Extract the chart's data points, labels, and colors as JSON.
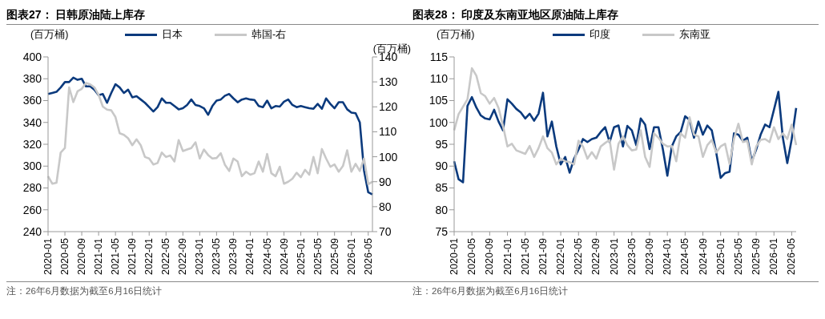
{
  "chart_data": [
    {
      "type": "line",
      "title": "图表27：  日韩原油陆上库存",
      "ylabel": "(百万桶)",
      "y2label": "(百万桶)",
      "annotations": [
        "注：26年6月数据为截至6月16日统计"
      ],
      "categories": [
        "2020-01",
        null,
        null,
        null,
        "2020-05",
        null,
        null,
        null,
        "2020-09",
        null,
        null,
        null,
        "2021-01",
        null,
        null,
        null,
        "2021-05",
        null,
        null,
        null,
        "2021-09",
        null,
        null,
        null,
        "2022-01",
        null,
        null,
        null,
        "2022-05",
        null,
        null,
        null,
        "2022-09",
        null,
        null,
        null,
        "2023-01",
        null,
        null,
        null,
        "2023-05",
        null,
        null,
        null,
        "2023-09",
        null,
        null,
        null,
        "2024-01",
        null,
        null,
        null,
        "2024-05",
        null,
        null,
        null,
        "2024-09",
        null,
        null,
        null,
        "2025-01",
        null,
        null,
        null,
        "2025-05",
        null,
        null,
        null,
        "2025-09",
        null,
        null,
        null,
        "2026-01",
        null,
        null,
        null,
        "2026-05",
        null
      ],
      "series": [
        {
          "name": "日本",
          "color": "#0b3a7d",
          "values": [
            366,
            367,
            368,
            372,
            377,
            377,
            381,
            379,
            380,
            373,
            373,
            370,
            365,
            366,
            358,
            367,
            375,
            372,
            367,
            370,
            363,
            364,
            361,
            358,
            354,
            350,
            354,
            362,
            358,
            358,
            355,
            352,
            353,
            356,
            361,
            356,
            355,
            353,
            347,
            355,
            360,
            361,
            364.5,
            366,
            362,
            358.5,
            361,
            362,
            361,
            360.5,
            355,
            354,
            360,
            353,
            355,
            354.5,
            359,
            361,
            356,
            354,
            355,
            354,
            353,
            352.5,
            357,
            352.5,
            362,
            357,
            353,
            358.5,
            358.5,
            352,
            349,
            348.5,
            340,
            296,
            276,
            274
          ]
        },
        {
          "name": "韩国-右",
          "color": "#c8c8c8",
          "axis": "y2",
          "values": [
            92.2,
            89.2,
            89.6,
            101.7,
            103.5,
            127.8,
            121.9,
            126.2,
            127.2,
            129.6,
            129,
            127.8,
            124.8,
            120.1,
            118.9,
            118.6,
            115.9,
            109.4,
            108.8,
            107.4,
            104.6,
            107,
            104.6,
            99.9,
            99.3,
            96.9,
            97.5,
            101.7,
            99.9,
            100.5,
            98.1,
            106.7,
            102.3,
            102.9,
            103.5,
            105.8,
            99.3,
            102.9,
            100.7,
            99.3,
            99.5,
            101.4,
            96.7,
            94.3,
            99.3,
            98.1,
            92.2,
            94,
            92.8,
            93.4,
            98.1,
            94,
            101.1,
            93.4,
            92.2,
            96,
            89.2,
            90,
            91.2,
            93.6,
            91.8,
            94.8,
            92.8,
            99.9,
            93.4,
            103.1,
            99.3,
            96,
            96.9,
            94,
            96.3,
            102.6,
            94,
            97.2,
            94.3,
            99.3,
            89,
            90
          ]
        }
      ],
      "ylim": [
        240,
        400
      ],
      "yticks": [
        240,
        260,
        280,
        300,
        320,
        340,
        360,
        380,
        400
      ],
      "y2lim": [
        70,
        140
      ],
      "y2ticks": [
        70,
        80,
        90,
        100,
        110,
        120,
        130,
        140
      ],
      "legend": "top",
      "grid": false,
      "marker": "none",
      "line_style": "solid"
    },
    {
      "type": "line",
      "title": "图表28：  印度及东南亚地区原油陆上库存",
      "ylabel": "(百万桶)",
      "annotations": [
        "注：26年6月数据为截至6月16日统计"
      ],
      "categories": [
        "2020-01",
        null,
        null,
        null,
        "2020-05",
        null,
        null,
        null,
        "2020-09",
        null,
        null,
        null,
        "2021-01",
        null,
        null,
        null,
        "2021-05",
        null,
        null,
        null,
        "2021-09",
        null,
        null,
        null,
        "2022-01",
        null,
        null,
        null,
        "2022-05",
        null,
        null,
        null,
        "2022-09",
        null,
        null,
        null,
        "2023-01",
        null,
        null,
        null,
        "2023-05",
        null,
        null,
        null,
        "2023-09",
        null,
        null,
        null,
        "2024-01",
        null,
        null,
        null,
        "2024-05",
        null,
        null,
        null,
        "2024-09",
        null,
        null,
        null,
        "2025-01",
        null,
        null,
        null,
        "2025-05",
        null,
        null,
        null,
        "2025-09",
        null,
        null,
        null,
        "2026-01",
        null,
        null,
        null,
        "2026-05",
        null
      ],
      "series": [
        {
          "name": "印度",
          "color": "#0b3a7d",
          "values": [
            91.1,
            87,
            86.3,
            103.8,
            105.8,
            103.4,
            101.6,
            100.9,
            100.7,
            102.9,
            100.2,
            98.2,
            105.3,
            104.3,
            103.1,
            102.3,
            100.9,
            102,
            100.4,
            102,
            106.8,
            96.8,
            100.2,
            94.5,
            90.4,
            92.1,
            88.5,
            91.7,
            93.8,
            96.2,
            95.5,
            96.2,
            96.5,
            97.8,
            98.9,
            95.5,
            98.9,
            99.3,
            94.5,
            99.2,
            98.2,
            94.8,
            100.9,
            99.5,
            93.9,
            98.9,
            98.9,
            93.8,
            87.8,
            94.5,
            96.8,
            97.8,
            101.4,
            100.6,
            96.5,
            100.2,
            97.2,
            99.3,
            98.2,
            93.1,
            87.3,
            88.4,
            88.7,
            97.5,
            97.2,
            95.8,
            96.5,
            91.1,
            93.8,
            97.2,
            99.5,
            98.9,
            102.9,
            107,
            96.5,
            90.7,
            96.2,
            103.3
          ]
        },
        {
          "name": "东南亚",
          "color": "#c8c8c8",
          "values": [
            98.2,
            101.9,
            103.6,
            105.3,
            112.4,
            110.7,
            106.7,
            106,
            104.3,
            105.6,
            103.3,
            99.2,
            94.5,
            95.1,
            93.6,
            93.2,
            92.8,
            94.6,
            92.1,
            94.1,
            96.8,
            94.1,
            93.1,
            90.4,
            91.7,
            91.1,
            90.9,
            90.4,
            95.8,
            94.5,
            91.7,
            93.2,
            91.7,
            94.5,
            95.3,
            96,
            89.2,
            95.1,
            96.8,
            94.8,
            93.6,
            93.8,
            98.2,
            92.1,
            89.8,
            97.5,
            96.5,
            95.1,
            94.5,
            94.6,
            91.1,
            97.5,
            96.5,
            101.2,
            97.2,
            96.8,
            92.1,
            94.8,
            96,
            93.1,
            94.5,
            95.1,
            90.5,
            96.2,
            99.7,
            95.5,
            95.8,
            90.4,
            94.5,
            96,
            96.2,
            95.5,
            98.9,
            96.2,
            97.5,
            96.2,
            99.5,
            94.8
          ]
        }
      ],
      "ylim": [
        75,
        115
      ],
      "yticks": [
        75,
        80,
        85,
        90,
        95,
        100,
        105,
        110,
        115
      ],
      "legend": "top",
      "grid": false,
      "marker": "none",
      "line_style": "solid"
    }
  ]
}
